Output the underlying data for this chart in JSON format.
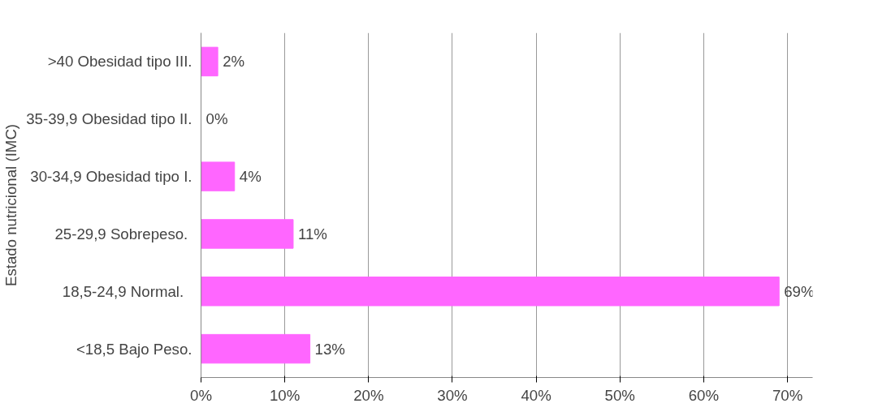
{
  "chart_data": {
    "type": "bar",
    "orientation": "horizontal",
    "ylabel": "Estado nutricional (IMC)",
    "categories": [
      ">40 Obesidad tipo III.",
      "35-39,9 Obesidad tipo II.",
      "30-34,9 Obesidad tipo I.",
      "25-29,9  Sobrepeso.",
      "18,5-24,9   Normal.",
      "<18,5 Bajo Peso."
    ],
    "values": [
      2,
      0,
      4,
      11,
      69,
      13
    ],
    "value_labels": [
      "2%",
      "0%",
      "4%",
      "11%",
      "69%",
      "13%"
    ],
    "color": "#ff66ff",
    "xlim": [
      0,
      73
    ],
    "xticks": [
      {
        "value": 0,
        "label": "0%"
      },
      {
        "value": 10,
        "label": "10%"
      },
      {
        "value": 20,
        "label": "20%"
      },
      {
        "value": 30,
        "label": "30%"
      },
      {
        "value": 40,
        "label": "40%"
      },
      {
        "value": 50,
        "label": "50%"
      },
      {
        "value": 60,
        "label": "60%"
      },
      {
        "value": 70,
        "label": "70%"
      }
    ],
    "grid": "x"
  }
}
